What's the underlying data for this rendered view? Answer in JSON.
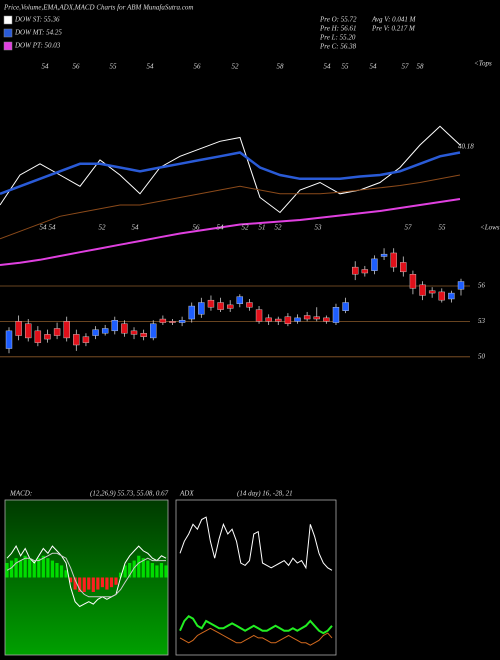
{
  "chart_data": [
    {
      "type": "candlestick",
      "title": "Price,Volume,EMA,ADX,MACD Charts for ABM MunafaSutra.com",
      "legend": [
        {
          "label": "DOW ST: 55.36",
          "color": "#ffffff"
        },
        {
          "label": "DOW MT: 54.25",
          "color": "#2a5bd7"
        },
        {
          "label": "DOW PT: 50.03",
          "color": "#e040e0"
        }
      ],
      "info": [
        "Pre  O: 55.72",
        "Pre  H: 56.61",
        "Pre  L: 55.20",
        "Pre  C: 56.38",
        "Avg  V: 0.041 M",
        "Pre  V: 0.217 M"
      ],
      "open": [
        50.7,
        53.0,
        52.8,
        52.2,
        51.9,
        52.4,
        53.0,
        51.9,
        51.7,
        51.8,
        52.0,
        52.2,
        52.8,
        52.2,
        52.0,
        51.6,
        53.2,
        53.0,
        52.9,
        53.2,
        53.6,
        54.8,
        54.6,
        54.4,
        54.5,
        54.6,
        54.0,
        53.3,
        53.2,
        53.4,
        53.0,
        53.5,
        53.4,
        53.3,
        52.9,
        53.9,
        57.6,
        57.4,
        57.3,
        58.5,
        58.8,
        58.0,
        57.0,
        56.1,
        55.6,
        55.5,
        54.9,
        55.72
      ],
      "high": [
        52.5,
        53.5,
        53.2,
        52.6,
        52.3,
        52.9,
        53.4,
        52.3,
        52.0,
        52.6,
        52.7,
        53.4,
        53.1,
        52.5,
        52.3,
        53.1,
        53.5,
        53.2,
        53.4,
        54.6,
        55.0,
        55.2,
        55.0,
        54.8,
        55.3,
        54.9,
        54.3,
        53.6,
        53.4,
        53.7,
        53.6,
        53.8,
        54.2,
        53.5,
        54.5,
        55.0,
        58.1,
        57.7,
        58.6,
        59.2,
        59.2,
        58.5,
        57.3,
        56.4,
        55.9,
        55.8,
        55.6,
        56.61
      ],
      "low": [
        50.3,
        51.4,
        51.3,
        50.9,
        51.2,
        51.5,
        51.3,
        50.5,
        50.9,
        51.5,
        51.8,
        51.9,
        51.7,
        51.5,
        51.4,
        51.4,
        52.7,
        52.7,
        52.6,
        52.9,
        53.3,
        53.9,
        53.8,
        53.8,
        54.2,
        53.9,
        52.8,
        52.7,
        52.7,
        52.6,
        52.8,
        53.0,
        53.0,
        52.8,
        52.7,
        53.7,
        56.5,
        56.8,
        57.0,
        58.2,
        57.2,
        56.8,
        55.3,
        54.8,
        55.0,
        54.6,
        54.6,
        55.2
      ],
      "close": [
        52.2,
        51.8,
        51.6,
        51.2,
        51.5,
        51.8,
        51.6,
        51.0,
        51.2,
        52.3,
        52.4,
        53.1,
        52.0,
        51.9,
        51.7,
        52.8,
        52.9,
        52.9,
        53.1,
        54.3,
        54.6,
        54.2,
        54.0,
        54.1,
        55.1,
        54.2,
        53.0,
        53.0,
        53.0,
        52.8,
        53.3,
        53.2,
        53.2,
        53.0,
        54.2,
        54.6,
        57.0,
        57.1,
        58.3,
        58.7,
        57.6,
        57.2,
        55.8,
        55.2,
        55.4,
        54.8,
        55.4,
        56.38
      ],
      "up_color": "#1e5eff",
      "down_color": "#e0101a",
      "ylim": [
        48,
        62
      ],
      "yticks": [
        50,
        53,
        56
      ],
      "ema_panel": {
        "ylim": [
          38,
          62
        ],
        "label": "40.18",
        "series": [
          {
            "color": "#ffffff",
            "values": [
              48,
              52,
              53.5,
              52,
              50.5,
              54,
              52,
              49.5,
              53,
              54.5,
              55.5,
              56.5,
              57,
              49,
              47,
              50,
              51,
              49.5,
              50,
              51,
              53,
              56,
              58.5,
              56
            ]
          },
          {
            "color": "#2a5bd7",
            "values": [
              49.5,
              50.5,
              51.5,
              52.5,
              53.5,
              53.5,
              53,
              52.5,
              53,
              53.5,
              54,
              54.5,
              55,
              53,
              52,
              51.5,
              51.5,
              51.5,
              51.8,
              52,
              52.5,
              53.5,
              54.5,
              55
            ]
          },
          {
            "color": "#8b4a1a",
            "values": [
              43.5,
              44.5,
              45.5,
              46.5,
              47,
              47.5,
              48,
              48,
              48.5,
              49,
              49.5,
              50,
              50.5,
              50,
              49.5,
              49.5,
              49.5,
              49.7,
              50,
              50.3,
              50.6,
              51,
              51.5,
              52
            ]
          },
          {
            "color": "#e040e0",
            "values": [
              40,
              40.3,
              40.7,
              41.2,
              41.7,
              42.2,
              42.7,
              43.2,
              43.7,
              44.2,
              44.6,
              45,
              45.4,
              45.6,
              45.8,
              46,
              46.3,
              46.6,
              46.9,
              47.2,
              47.6,
              48,
              48.4,
              48.8
            ]
          }
        ]
      },
      "tops": [
        54,
        56,
        55,
        54,
        56,
        52,
        58,
        54,
        55,
        54,
        57,
        58
      ],
      "tops_label": "<Tops",
      "lows": [
        54,
        54,
        52,
        54,
        56,
        54,
        52,
        51,
        52,
        53,
        57,
        55
      ],
      "lows_label": "<Lows"
    },
    {
      "type": "macd",
      "label": "MACD:",
      "params": "(12,26,9) 55.73, 55.08, 0.67",
      "ylim": [
        -3,
        3
      ],
      "pos_color": "#00dd00",
      "neg_color": "#ff2020",
      "histogram": [
        0.6,
        0.7,
        0.8,
        0.7,
        0.9,
        0.8,
        0.7,
        0.8,
        0.9,
        0.8,
        0.7,
        0.6,
        0.5,
        0.3,
        -0.2,
        -0.5,
        -0.6,
        -0.6,
        -0.5,
        -0.6,
        -0.5,
        -0.4,
        -0.5,
        -0.4,
        -0.3,
        0.2,
        0.5,
        0.6,
        0.7,
        0.9,
        0.8,
        0.7,
        0.6,
        0.5,
        0.6,
        0.5
      ],
      "series": [
        {
          "color": "#ffffff",
          "values": [
            0.8,
            1.0,
            1.3,
            0.9,
            1.2,
            0.8,
            0.6,
            0.9,
            1.2,
            1.0,
            1.3,
            1.1,
            0.9,
            0.6,
            -0.4,
            -1.0,
            -1.2,
            -1.1,
            -1.0,
            -1.1,
            -0.9,
            -0.8,
            -0.9,
            -0.8,
            -0.7,
            0.0,
            0.6,
            0.9,
            1.1,
            1.3,
            1.1,
            1.0,
            0.8,
            0.7,
            0.9,
            0.8
          ]
        },
        {
          "color": "#cccccc",
          "values": [
            0.3,
            0.4,
            0.6,
            0.7,
            0.8,
            0.8,
            0.7,
            0.7,
            0.8,
            0.9,
            1.0,
            1.0,
            0.9,
            0.8,
            0.4,
            -0.1,
            -0.5,
            -0.7,
            -0.8,
            -0.8,
            -0.8,
            -0.8,
            -0.8,
            -0.8,
            -0.7,
            -0.5,
            -0.2,
            0.1,
            0.4,
            0.6,
            0.7,
            0.8,
            0.7,
            0.7,
            0.7,
            0.7
          ]
        }
      ]
    },
    {
      "type": "line",
      "label": "ADX",
      "params": "(14 day) 16, -28, 21",
      "ylim": [
        0,
        60
      ],
      "series": [
        {
          "color": "#ffffff",
          "values": [
            40,
            45,
            48,
            52,
            50,
            54,
            55,
            45,
            38,
            46,
            52,
            48,
            50,
            45,
            36,
            35,
            37,
            48,
            49,
            36,
            35,
            34,
            35,
            36,
            37,
            35,
            38,
            36,
            37,
            34,
            52,
            47,
            40,
            36,
            34,
            33
          ]
        },
        {
          "color": "#22ee22",
          "values": [
            8,
            12,
            14,
            13,
            10,
            9,
            12,
            11,
            10,
            9,
            9,
            10,
            11,
            10,
            9,
            8,
            9,
            10,
            9,
            8,
            8,
            9,
            10,
            9,
            8,
            8,
            9,
            8,
            9,
            10,
            12,
            10,
            8,
            7,
            8,
            10
          ]
        },
        {
          "color": "#d2691e",
          "values": [
            5,
            4,
            3,
            4,
            6,
            7,
            8,
            9,
            8,
            7,
            6,
            5,
            4,
            3,
            3,
            4,
            5,
            6,
            5,
            5,
            4,
            3,
            3,
            4,
            5,
            6,
            5,
            4,
            3,
            3,
            2,
            3,
            4,
            6,
            7,
            5
          ]
        }
      ]
    }
  ]
}
